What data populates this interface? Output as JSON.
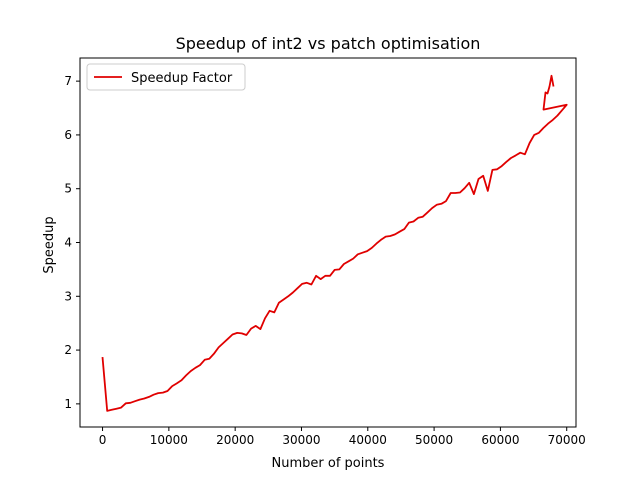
{
  "chart_data": {
    "type": "line",
    "title": "Speedup of int2 vs patch optimisation",
    "xlabel": "Number of points",
    "ylabel": "Speedup",
    "xlim": [
      -3400,
      71400
    ],
    "ylim": [
      0.57,
      7.43
    ],
    "x_ticks": [
      0,
      10000,
      20000,
      30000,
      40000,
      50000,
      60000,
      70000
    ],
    "y_ticks": [
      1,
      2,
      3,
      4,
      5,
      6,
      7
    ],
    "grid": false,
    "legend": "top-left",
    "series": [
      {
        "name": "Speedup Factor",
        "color": "#e00000",
        "points": [
          [
            0,
            1.87
          ],
          [
            700,
            0.87
          ],
          [
            1400,
            0.89
          ],
          [
            2100,
            0.91
          ],
          [
            2800,
            0.93
          ],
          [
            3500,
            1.01
          ],
          [
            4200,
            1.02
          ],
          [
            4900,
            1.05
          ],
          [
            5600,
            1.08
          ],
          [
            6300,
            1.1
          ],
          [
            7000,
            1.13
          ],
          [
            7700,
            1.17
          ],
          [
            8400,
            1.2
          ],
          [
            9100,
            1.21
          ],
          [
            9800,
            1.24
          ],
          [
            10500,
            1.33
          ],
          [
            11200,
            1.38
          ],
          [
            11900,
            1.44
          ],
          [
            12600,
            1.53
          ],
          [
            13300,
            1.61
          ],
          [
            14000,
            1.67
          ],
          [
            14700,
            1.72
          ],
          [
            15400,
            1.82
          ],
          [
            16100,
            1.84
          ],
          [
            16800,
            1.93
          ],
          [
            17500,
            2.05
          ],
          [
            18200,
            2.13
          ],
          [
            18900,
            2.21
          ],
          [
            19600,
            2.29
          ],
          [
            20300,
            2.32
          ],
          [
            21000,
            2.31
          ],
          [
            21700,
            2.28
          ],
          [
            22400,
            2.4
          ],
          [
            23100,
            2.45
          ],
          [
            23800,
            2.39
          ],
          [
            24500,
            2.59
          ],
          [
            25200,
            2.73
          ],
          [
            25900,
            2.7
          ],
          [
            26600,
            2.88
          ],
          [
            27300,
            2.94
          ],
          [
            28000,
            3.0
          ],
          [
            28700,
            3.07
          ],
          [
            29400,
            3.15
          ],
          [
            30100,
            3.23
          ],
          [
            30800,
            3.25
          ],
          [
            31500,
            3.22
          ],
          [
            32200,
            3.38
          ],
          [
            32900,
            3.32
          ],
          [
            33600,
            3.38
          ],
          [
            34300,
            3.38
          ],
          [
            35000,
            3.49
          ],
          [
            35700,
            3.5
          ],
          [
            36400,
            3.6
          ],
          [
            37100,
            3.65
          ],
          [
            37800,
            3.7
          ],
          [
            38500,
            3.78
          ],
          [
            39200,
            3.81
          ],
          [
            39900,
            3.84
          ],
          [
            40600,
            3.9
          ],
          [
            41300,
            3.98
          ],
          [
            42000,
            4.05
          ],
          [
            42700,
            4.11
          ],
          [
            43400,
            4.12
          ],
          [
            44100,
            4.15
          ],
          [
            44800,
            4.2
          ],
          [
            45500,
            4.25
          ],
          [
            46200,
            4.37
          ],
          [
            46900,
            4.39
          ],
          [
            47600,
            4.46
          ],
          [
            48300,
            4.48
          ],
          [
            49000,
            4.56
          ],
          [
            49700,
            4.64
          ],
          [
            50400,
            4.7
          ],
          [
            51100,
            4.72
          ],
          [
            51800,
            4.77
          ],
          [
            52500,
            4.92
          ],
          [
            53200,
            4.92
          ],
          [
            53900,
            4.93
          ],
          [
            54600,
            5.01
          ],
          [
            55300,
            5.11
          ],
          [
            56000,
            4.9
          ],
          [
            56700,
            5.18
          ],
          [
            57400,
            5.24
          ],
          [
            58100,
            4.96
          ],
          [
            58800,
            5.35
          ],
          [
            59500,
            5.36
          ],
          [
            60200,
            5.42
          ],
          [
            60900,
            5.5
          ],
          [
            61600,
            5.57
          ],
          [
            62300,
            5.62
          ],
          [
            63000,
            5.67
          ],
          [
            63700,
            5.64
          ],
          [
            64400,
            5.85
          ],
          [
            65100,
            6.0
          ],
          [
            65800,
            6.04
          ],
          [
            66500,
            6.13
          ],
          [
            67200,
            6.21
          ],
          [
            67900,
            6.28
          ],
          [
            68600,
            6.36
          ],
          [
            69300,
            6.46
          ],
          [
            70000,
            6.56
          ],
          [
            66500,
            6.47
          ],
          [
            66800,
            6.79
          ],
          [
            67100,
            6.77
          ],
          [
            67400,
            6.9
          ],
          [
            67700,
            7.1
          ],
          [
            68000,
            6.9
          ]
        ]
      }
    ]
  }
}
